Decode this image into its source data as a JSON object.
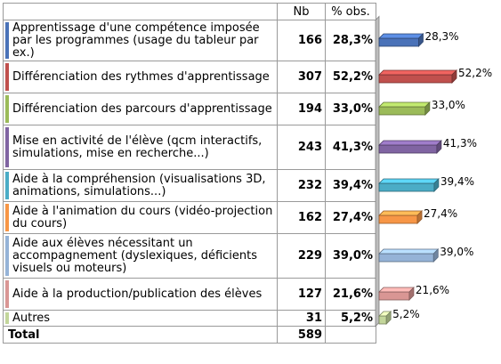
{
  "table": {
    "headers": {
      "label": "",
      "nb": "Nb",
      "pct": "% obs."
    },
    "rows": [
      {
        "label": "Apprentissage d'une compétence imposée par les programmes (usage du tableur par ex.)",
        "nb": "166",
        "pct": "28,3%",
        "color": "#4a72b8"
      },
      {
        "label": "Différenciation des rythmes d'apprentissage",
        "nb": "307",
        "pct": "52,2%",
        "color": "#c0504d"
      },
      {
        "label": "Différenciation des parcours d'apprentissage",
        "nb": "194",
        "pct": "33,0%",
        "color": "#9bbb59"
      },
      {
        "label": "Mise en activité de l'élève (qcm interactifs, simulations, mise en recherche...)",
        "nb": "243",
        "pct": "41,3%",
        "color": "#8064a2"
      },
      {
        "label": "Aide à la compréhension (visualisations 3D, animations, simulations...)",
        "nb": "232",
        "pct": "39,4%",
        "color": "#4bacc6"
      },
      {
        "label": "Aide à l'animation du cours (vidéo-projection du cours)",
        "nb": "162",
        "pct": "27,4%",
        "color": "#f79646"
      },
      {
        "label": "Aide aux élèves nécessitant un accompagnement (dyslexiques, déficients visuels ou moteurs)",
        "nb": "229",
        "pct": "39,0%",
        "color": "#95b3d7"
      },
      {
        "label": "Aide à la production/publication des élèves",
        "nb": "127",
        "pct": "21,6%",
        "color": "#d99694"
      },
      {
        "label": "Autres",
        "nb": "31",
        "pct": "5,2%",
        "color": "#c3d69b"
      }
    ],
    "total": {
      "label": "Total",
      "nb": "589"
    }
  },
  "chart_data": {
    "type": "bar",
    "orientation": "horizontal",
    "categories": [
      "Apprentissage d'une compétence imposée par les programmes (usage du tableur par ex.)",
      "Différenciation des rythmes d'apprentissage",
      "Différenciation des parcours d'apprentissage",
      "Mise en activité de l'élève (qcm interactifs, simulations, mise en recherche...)",
      "Aide à la compréhension (visualisations 3D, animations, simulations...)",
      "Aide à l'animation du cours (vidéo-projection du cours)",
      "Aide aux élèves nécessitant un accompagnement (dyslexiques, déficients visuels ou moteurs)",
      "Aide à la production/publication des élèves",
      "Autres"
    ],
    "values": [
      28.3,
      52.2,
      33.0,
      41.3,
      39.4,
      27.4,
      39.0,
      21.6,
      5.2
    ],
    "value_labels": [
      "28,3%",
      "52,2%",
      "33,0%",
      "41,3%",
      "39,4%",
      "27,4%",
      "39,0%",
      "21,6%",
      "5,2%"
    ],
    "colors": [
      "#4a72b8",
      "#c0504d",
      "#9bbb59",
      "#8064a2",
      "#4bacc6",
      "#f79646",
      "#95b3d7",
      "#d99694",
      "#c3d69b"
    ],
    "style": "3d",
    "xlim": [
      0,
      52.2
    ]
  }
}
